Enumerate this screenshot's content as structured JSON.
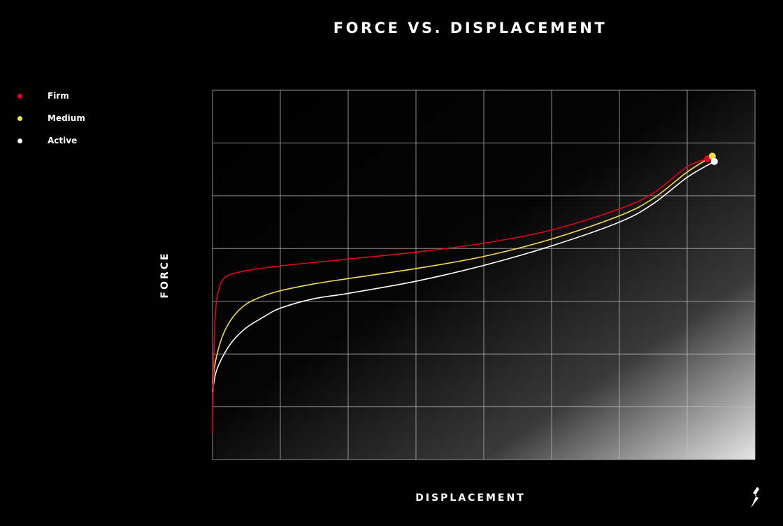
{
  "chart_data": {
    "type": "line",
    "title": "FORCE VS. DISPLACEMENT",
    "xlabel": "DISPLACEMENT",
    "ylabel": "FORCE",
    "xlim": [
      0,
      8
    ],
    "ylim": [
      0,
      7
    ],
    "grid": true,
    "legend_position": "top-left",
    "series": [
      {
        "name": "Firm",
        "color": "#e3001b",
        "x": [
          0,
          0.02,
          0.05,
          0.1,
          0.15,
          0.25,
          0.5,
          1,
          2,
          3,
          4,
          5,
          6,
          6.5,
          7,
          7.3
        ],
        "y": [
          0.5,
          2.0,
          2.9,
          3.25,
          3.4,
          3.5,
          3.58,
          3.67,
          3.8,
          3.93,
          4.1,
          4.35,
          4.75,
          5.05,
          5.55,
          5.7
        ]
      },
      {
        "name": "Medium",
        "color": "#f5dd4b",
        "x": [
          0,
          0.05,
          0.15,
          0.3,
          0.5,
          0.75,
          1,
          1.5,
          2,
          3,
          4,
          5,
          6,
          6.5,
          7,
          7.37
        ],
        "y": [
          1.45,
          1.9,
          2.35,
          2.7,
          2.95,
          3.1,
          3.2,
          3.33,
          3.43,
          3.62,
          3.85,
          4.18,
          4.62,
          4.95,
          5.45,
          5.75
        ]
      },
      {
        "name": "Active",
        "color": "#ffffff",
        "x": [
          0,
          0.05,
          0.15,
          0.3,
          0.5,
          0.75,
          1,
          1.5,
          2,
          3,
          4,
          5,
          6,
          6.5,
          7,
          7.4
        ],
        "y": [
          1.3,
          1.65,
          1.95,
          2.25,
          2.5,
          2.7,
          2.87,
          3.05,
          3.15,
          3.38,
          3.68,
          4.05,
          4.5,
          4.85,
          5.35,
          5.65
        ]
      }
    ]
  }
}
